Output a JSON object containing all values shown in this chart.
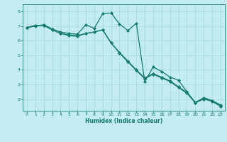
{
  "title": "",
  "xlabel": "Humidex (Indice chaleur)",
  "background_color": "#c2ecee",
  "line_color": "#1a7a6e",
  "grid_color": "#a8d8dc",
  "xlim": [
    -0.5,
    23.5
  ],
  "ylim": [
    1.2,
    8.5
  ],
  "yticks": [
    2,
    3,
    4,
    5,
    6,
    7,
    8
  ],
  "xticks": [
    0,
    1,
    2,
    3,
    4,
    5,
    6,
    7,
    8,
    9,
    10,
    11,
    12,
    13,
    14,
    15,
    16,
    17,
    18,
    19,
    20,
    21,
    22,
    23
  ],
  "series": [
    {
      "x": [
        0,
        1,
        2,
        3,
        4,
        5,
        6,
        7,
        8,
        9,
        10,
        11,
        12,
        13,
        14,
        15,
        16,
        17,
        18,
        19,
        20,
        21,
        22,
        23
      ],
      "y": [
        6.9,
        7.0,
        7.1,
        6.8,
        6.6,
        6.5,
        6.45,
        7.1,
        6.85,
        7.85,
        7.9,
        7.15,
        6.7,
        7.2,
        3.2,
        4.2,
        3.9,
        3.5,
        3.3,
        2.5,
        1.75,
        2.1,
        1.9,
        1.6
      ]
    },
    {
      "x": [
        0,
        1,
        2,
        3,
        4,
        5,
        6,
        7,
        8,
        9,
        10,
        11,
        12,
        13,
        14,
        15,
        16,
        17,
        18,
        19,
        20,
        21,
        22,
        23
      ],
      "y": [
        6.9,
        7.05,
        7.05,
        6.75,
        6.5,
        6.4,
        6.35,
        6.5,
        6.6,
        6.75,
        5.85,
        5.2,
        4.6,
        4.0,
        3.45,
        3.75,
        3.5,
        3.25,
        2.85,
        2.45,
        1.78,
        2.05,
        1.88,
        1.55
      ]
    },
    {
      "x": [
        0,
        1,
        2,
        3,
        4,
        5,
        6,
        7,
        8,
        9,
        10,
        11,
        12,
        13,
        14,
        15,
        16,
        17,
        18,
        19,
        20,
        21,
        22,
        23
      ],
      "y": [
        6.9,
        7.05,
        7.05,
        6.75,
        6.5,
        6.35,
        6.3,
        6.5,
        6.6,
        6.75,
        5.85,
        5.15,
        4.55,
        3.95,
        3.4,
        3.7,
        3.45,
        3.2,
        2.8,
        2.4,
        1.75,
        2.0,
        1.85,
        1.5
      ]
    }
  ]
}
